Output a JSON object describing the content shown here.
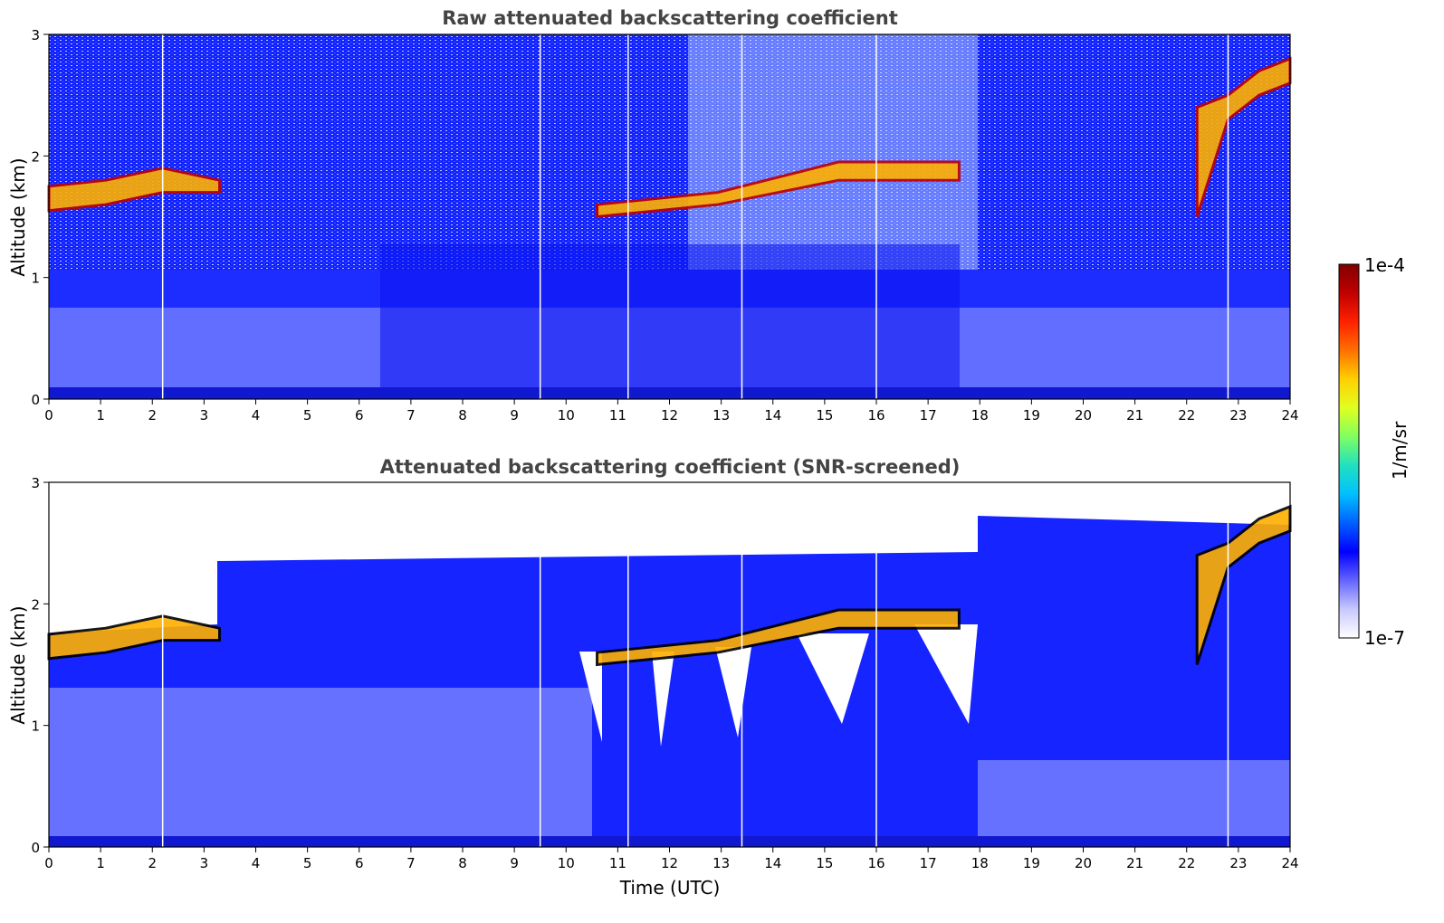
{
  "chart_data": [
    {
      "type": "heatmap",
      "title": "Raw attenuated backscattering coefficient",
      "xlabel": "",
      "ylabel": "Altitude (km)",
      "xlim": [
        0,
        24
      ],
      "ylim": [
        0,
        3
      ],
      "xticks": [
        "0",
        "1",
        "2",
        "3",
        "4",
        "5",
        "6",
        "7",
        "8",
        "9",
        "10",
        "11",
        "12",
        "13",
        "14",
        "15",
        "16",
        "17",
        "18",
        "19",
        "20",
        "21",
        "22",
        "23",
        "24"
      ],
      "yticks": [
        "0",
        "1",
        "2",
        "3"
      ],
      "gaps_utc": [
        2.2,
        9.5,
        11.2,
        13.4,
        16.0,
        22.8
      ],
      "cloud_layers": [
        {
          "t_start": 0.0,
          "t_end": 3.3,
          "base_km": [
            1.55,
            1.6,
            1.7,
            1.7
          ],
          "top_km": [
            1.75,
            1.8,
            1.9,
            1.8
          ]
        },
        {
          "t_start": 10.6,
          "t_end": 17.6,
          "base_km": [
            1.5,
            1.6,
            1.8,
            1.8
          ],
          "top_km": [
            1.6,
            1.7,
            1.95,
            1.95
          ]
        },
        {
          "t_start": 22.2,
          "t_end": 24.0,
          "base_km": [
            1.5,
            2.3,
            2.5,
            2.6
          ],
          "top_km": [
            2.4,
            2.5,
            2.7,
            2.8
          ]
        }
      ]
    },
    {
      "type": "heatmap",
      "title": "Attenuated backscattering coefficient (SNR-screened)",
      "xlabel": "Time (UTC)",
      "ylabel": "Altitude (km)",
      "xlim": [
        0,
        24
      ],
      "ylim": [
        0,
        3
      ],
      "xticks": [
        "0",
        "1",
        "2",
        "3",
        "4",
        "5",
        "6",
        "7",
        "8",
        "9",
        "10",
        "11",
        "12",
        "13",
        "14",
        "15",
        "16",
        "17",
        "18",
        "19",
        "20",
        "21",
        "22",
        "23",
        "24"
      ],
      "yticks": [
        "0",
        "1",
        "2",
        "3"
      ],
      "gaps_utc": [
        2.2,
        9.5,
        11.2,
        13.4,
        16.0,
        22.8
      ]
    }
  ],
  "colorbar": {
    "label": "1/m/sr",
    "max_label": "1e-4",
    "min_label": "1e-7",
    "colormap": [
      "#ffffff",
      "#c8c8ff",
      "#6464ff",
      "#0000ff",
      "#0060ff",
      "#00c0ff",
      "#20e0c0",
      "#80ff60",
      "#e0ff20",
      "#ffd000",
      "#ff7000",
      "#ff2000",
      "#c00000",
      "#800000"
    ]
  }
}
